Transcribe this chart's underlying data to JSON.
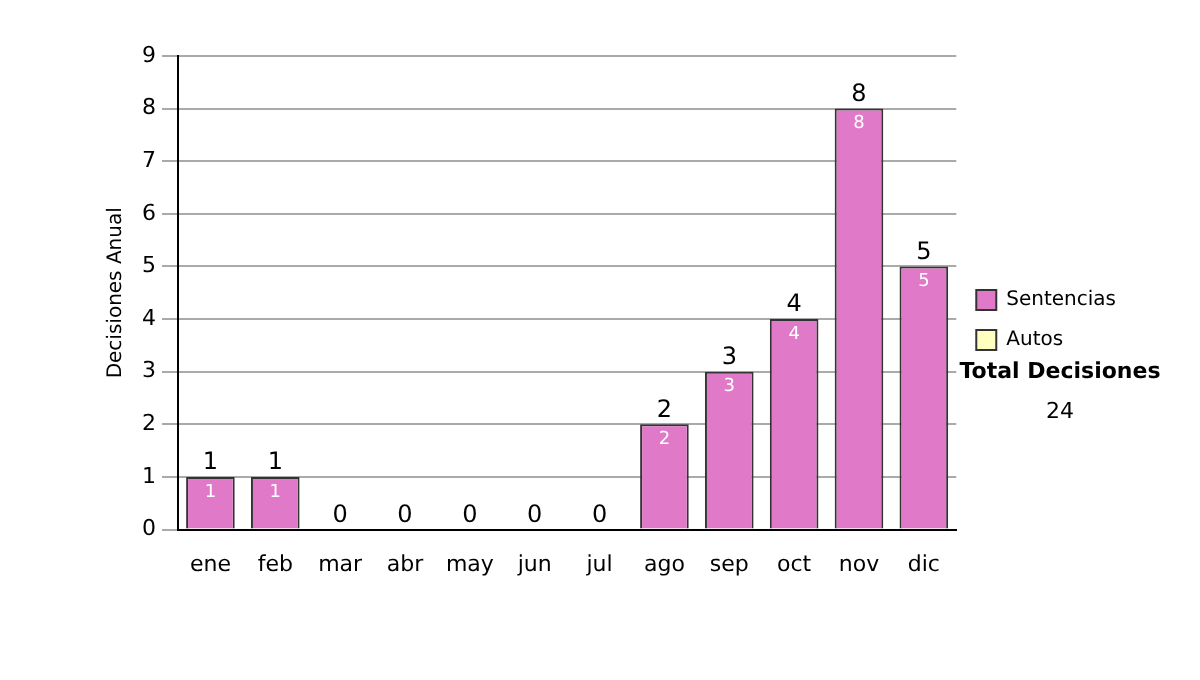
{
  "chart_data": {
    "type": "bar",
    "stacked": true,
    "ylabel": "Decisiones Anual",
    "categories": [
      "ene",
      "feb",
      "mar",
      "abr",
      "may",
      "jun",
      "jul",
      "ago",
      "sep",
      "oct",
      "nov",
      "dic"
    ],
    "series": [
      {
        "name": "Sentencias",
        "color": "#e07ac8",
        "values": [
          1,
          1,
          0,
          0,
          0,
          0,
          0,
          2,
          3,
          4,
          8,
          5
        ],
        "value_labels": [
          "1",
          "1",
          null,
          null,
          null,
          null,
          null,
          "2",
          "3",
          "4",
          "8",
          "5"
        ]
      },
      {
        "name": "Autos",
        "color": "#ffffc0",
        "values": [
          0,
          0,
          0,
          0,
          0,
          0,
          0,
          0,
          0,
          0,
          0,
          0
        ]
      }
    ],
    "totals": [
      "1",
      "1",
      "0",
      "0",
      "0",
      "0",
      "0",
      "2",
      "3",
      "4",
      "8",
      "5"
    ],
    "ylim": [
      0,
      9
    ],
    "yticks": [
      0,
      1,
      2,
      3,
      4,
      5,
      6,
      7,
      8,
      9
    ],
    "grid": "y",
    "legend": "right",
    "annotations": [
      "Total Decisiones",
      "24"
    ]
  }
}
